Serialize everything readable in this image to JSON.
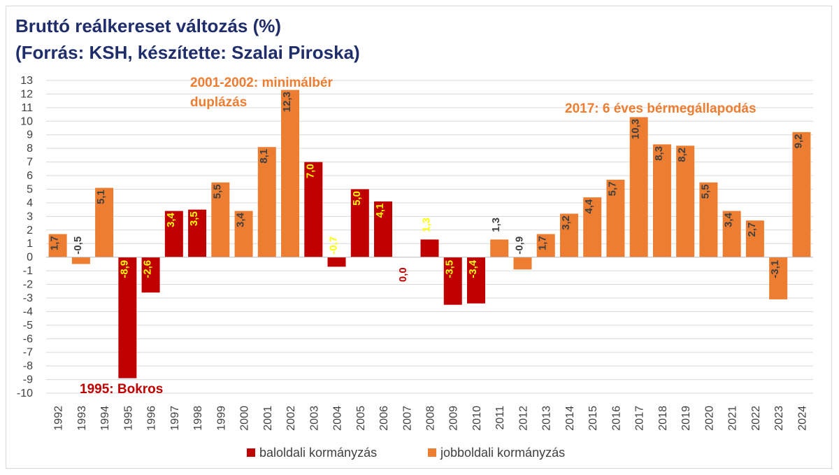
{
  "chart_data": {
    "type": "bar",
    "title": "Bruttó reálkereset változás (%)",
    "subtitle": "(Forrás: KSH, készítette: Szalai Piroska)",
    "ylim": [
      -10,
      13
    ],
    "yticks": [
      13,
      12,
      11,
      10,
      9,
      8,
      7,
      6,
      5,
      4,
      3,
      2,
      1,
      0,
      -1,
      -2,
      -3,
      -4,
      -5,
      -6,
      -7,
      -8,
      -9,
      -10
    ],
    "grid": true,
    "categories": [
      "1992",
      "1993",
      "1994",
      "1995",
      "1996",
      "1997",
      "1998",
      "1999",
      "2000",
      "2001",
      "2002",
      "2003",
      "2004",
      "2005",
      "2006",
      "2007",
      "2008",
      "2009",
      "2010",
      "2011",
      "2012",
      "2013",
      "2014",
      "2015",
      "2016",
      "2017",
      "2018",
      "2019",
      "2020",
      "2021",
      "2022",
      "2023",
      "2024"
    ],
    "values": [
      1.7,
      -0.5,
      5.1,
      -8.9,
      -2.6,
      3.4,
      3.5,
      5.5,
      3.4,
      8.1,
      12.3,
      7.0,
      -0.7,
      5.0,
      4.1,
      0.0,
      1.3,
      -3.5,
      -3.4,
      1.3,
      -0.9,
      1.7,
      3.2,
      4.4,
      5.7,
      10.3,
      8.3,
      8.2,
      5.5,
      3.4,
      2.7,
      -3.1,
      9.2
    ],
    "value_labels": [
      "1,7",
      "-0,5",
      "5,1",
      "-8,9",
      "-2,6",
      "3,4",
      "3,5",
      "5,5",
      "3,4",
      "8,1",
      "12,3",
      "7,0",
      "-0,7",
      "5,0",
      "4,1",
      "0,0",
      "1,3",
      "-3,5",
      "-3,4",
      "1,3",
      "-0,9",
      "1,7",
      "3,2",
      "4,4",
      "5,7",
      "10,3",
      "8,3",
      "8,2",
      "5,5",
      "3,4",
      "2,7",
      "-3,1",
      "9,2"
    ],
    "groups": [
      "jobb",
      "jobb",
      "jobb",
      "bal",
      "bal",
      "bal",
      "bal",
      "jobb",
      "jobb",
      "jobb",
      "jobb",
      "bal",
      "bal",
      "bal",
      "bal",
      "bal",
      "bal",
      "bal",
      "bal",
      "jobb",
      "jobb",
      "jobb",
      "jobb",
      "jobb",
      "jobb",
      "jobb",
      "jobb",
      "jobb",
      "jobb",
      "jobb",
      "jobb",
      "jobb",
      "jobb"
    ],
    "label_colors": [
      "#404040",
      "#404040",
      "#404040",
      "#ffff00",
      "#ffff00",
      "#ffff00",
      "#ffff00",
      "#404040",
      "#404040",
      "#404040",
      "#404040",
      "#ffff00",
      "#ffff00",
      "#ffff00",
      "#ffff00",
      "#c00000",
      "#ffff00",
      "#ffff00",
      "#ffff00",
      "#404040",
      "#404040",
      "#404040",
      "#404040",
      "#404040",
      "#404040",
      "#404040",
      "#404040",
      "#404040",
      "#404040",
      "#404040",
      "#404040",
      "#404040",
      "#404040"
    ],
    "series": [
      {
        "name": "baloldali kormányzás",
        "key": "bal",
        "color": "#c00000"
      },
      {
        "name": "jobboldali kormányzás",
        "key": "jobb",
        "color": "#ed7d31"
      }
    ],
    "legend_position": "bottom",
    "annotations": [
      {
        "text": "1995: Bokros",
        "color": "#c00000"
      },
      {
        "text_lines": [
          "2001-2002: minimálbér",
          "duplázás"
        ],
        "color": "#ed7d31"
      },
      {
        "text": "2017: 6 éves bérmegállapodás",
        "color": "#ed7d31"
      }
    ]
  }
}
